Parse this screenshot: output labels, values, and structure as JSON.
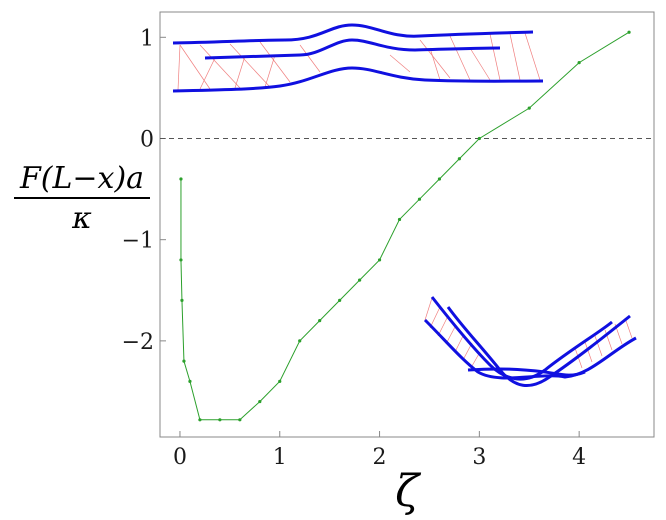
{
  "chart_data": {
    "type": "line",
    "title": "",
    "xlabel": "ζ",
    "ylabel": {
      "numerator": "F(L−x)a",
      "denominator": "κ"
    },
    "xlim": [
      -0.2,
      4.75
    ],
    "ylim": [
      -2.95,
      1.25
    ],
    "x_ticks": [
      0,
      1,
      2,
      3,
      4
    ],
    "y_ticks": [
      1,
      0,
      -1,
      -2
    ],
    "x_tick_labels": [
      "0",
      "1",
      "2",
      "3",
      "4"
    ],
    "y_tick_labels": [
      "1",
      "0",
      "−1",
      "−2"
    ],
    "reference_line": {
      "y": 0,
      "style": "dashed",
      "color": "#555555"
    },
    "series": [
      {
        "color": "#2ca02c",
        "marker": "dot",
        "x": [
          0.01,
          0.01,
          0.02,
          0.04,
          0.1,
          0.2,
          0.4,
          0.6,
          0.8,
          1.0,
          1.2,
          1.4,
          1.6,
          1.8,
          2.0,
          2.2,
          2.4,
          2.6,
          2.8,
          3.0,
          3.5,
          4.0,
          4.5
        ],
        "y": [
          -0.4,
          -1.2,
          -1.6,
          -2.2,
          -2.4,
          -2.78,
          -2.78,
          -2.78,
          -2.6,
          -2.4,
          -2.0,
          -1.8,
          -1.6,
          -1.4,
          -1.2,
          -0.8,
          -0.6,
          -0.4,
          -0.2,
          0.0,
          0.3,
          0.75,
          1.05
        ]
      }
    ],
    "grid": false,
    "legend": "none",
    "insets": [
      {
        "name": "straight-bundle-inset",
        "location": "top",
        "strand_color": "#1010e0",
        "link_color": "#f08080"
      },
      {
        "name": "bent-bundle-inset",
        "location": "bottom-right",
        "strand_color": "#1010e0",
        "link_color": "#f08080"
      }
    ]
  }
}
